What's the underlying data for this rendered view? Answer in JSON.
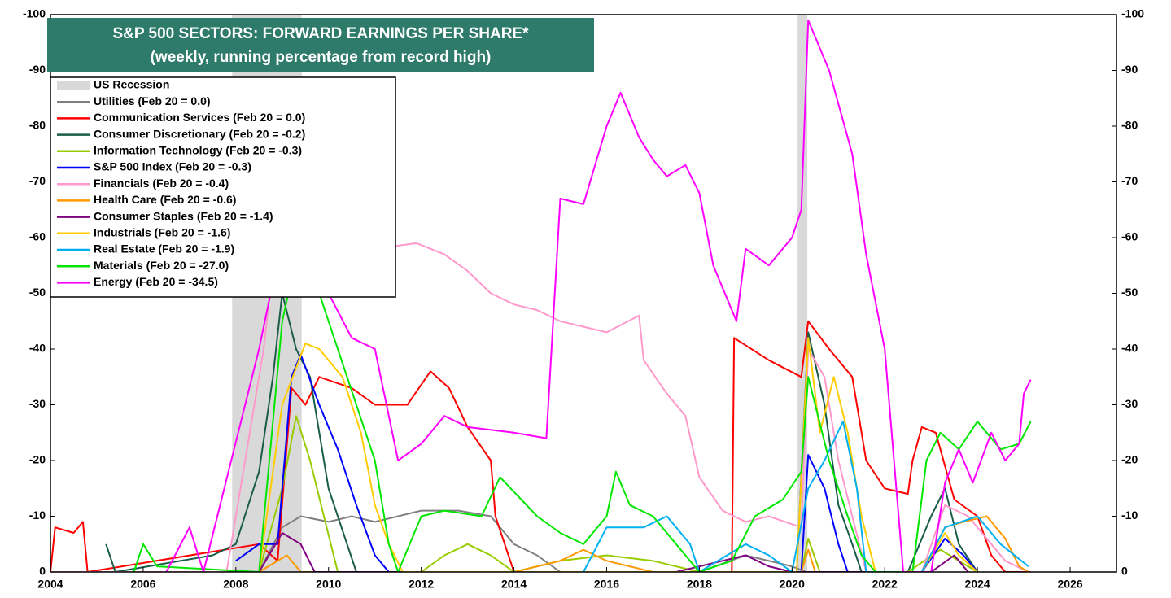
{
  "chart_data": {
    "type": "line",
    "title": "S&P 500 SECTORS: FORWARD EARNINGS PER SHARE*",
    "subtitle": "(weekly, running percentage from record high)",
    "xlim": [
      2004,
      2027
    ],
    "xticks": [
      2004,
      2006,
      2008,
      2010,
      2012,
      2014,
      2016,
      2018,
      2020,
      2022,
      2024,
      2026
    ],
    "ylim": [
      0,
      -100
    ],
    "yticks": [
      0,
      -10,
      -20,
      -30,
      -40,
      -50,
      -60,
      -70,
      -80,
      -90,
      -100
    ],
    "y2lim": [
      0,
      -100
    ],
    "y2ticks": [
      0,
      -10,
      -20,
      -30,
      -40,
      -50,
      -60,
      -70,
      -80,
      -90,
      -100
    ],
    "recession_label": "US Recession",
    "recession_color": "#d9d9d9",
    "recessions": [
      [
        2007.92,
        2009.42
      ],
      [
        2020.12,
        2020.33
      ]
    ],
    "series": [
      {
        "name": "Utilities (Feb 20 = 0.0)",
        "color": "#808080",
        "x": [
          2004,
          2008.5,
          2009,
          2009.4,
          2010,
          2010.5,
          2011,
          2012,
          2012.8,
          2013.5,
          2014,
          2014.5,
          2015,
          2018,
          2019,
          2020,
          2020.3
        ],
        "values": [
          0,
          0,
          -8,
          -10,
          -9,
          -10,
          -9,
          -11,
          -11,
          -10,
          -5,
          -3,
          0,
          0,
          -3,
          -1,
          0
        ]
      },
      {
        "name": "Communication Services (Feb 20 = 0.0)",
        "color": "#ff0000",
        "x": [
          2004,
          2004.1,
          2004.5,
          2004.7,
          2004.8,
          2008.5,
          2008.9,
          2009.2,
          2009.5,
          2009.8,
          2010.5,
          2011,
          2011.7,
          2012.2,
          2012.6,
          2013,
          2013.5,
          2013.6,
          2014,
          2018.7,
          2018.75,
          2019.5,
          2020.2,
          2020.35,
          2020.8,
          2021.3,
          2021.6,
          2022,
          2022.5,
          2022.6,
          2022.8,
          2023.1,
          2023.5,
          2024,
          2024.3,
          2024.6,
          2025.15
        ],
        "values": [
          0,
          -8,
          -7,
          -9,
          0,
          -5,
          -2,
          -33,
          -30,
          -35,
          -33,
          -30,
          -30,
          -36,
          -33,
          -26,
          -20,
          -10,
          0,
          0,
          -42,
          -38,
          -35,
          -45,
          -40,
          -35,
          -20,
          -15,
          -14,
          -20,
          -26,
          -25,
          -13,
          -10,
          -3,
          0,
          0
        ]
      },
      {
        "name": "Consumer Discretionary (Feb 20 = -0.2)",
        "color": "#1a5c4a",
        "x": [
          2005.2,
          2005.4,
          2007.5,
          2008,
          2008.5,
          2008.8,
          2009.0,
          2009.3,
          2009.6,
          2010,
          2010.4,
          2010.6,
          2020.1,
          2020.35,
          2020.7,
          2021.0,
          2021.3,
          2021.5,
          2022.5,
          2023,
          2023.3,
          2023.6,
          2024
        ],
        "values": [
          -5,
          0,
          -3,
          -5,
          -18,
          -35,
          -50,
          -40,
          -35,
          -15,
          -5,
          0,
          0,
          -43,
          -30,
          -12,
          -5,
          0,
          0,
          -10,
          -15,
          -5,
          0
        ]
      },
      {
        "name": "Information Technology (Feb 20 = -0.3)",
        "color": "#99cc00",
        "x": [
          2008.5,
          2009,
          2009.3,
          2009.6,
          2009.9,
          2010.2,
          2012,
          2012.5,
          2013,
          2013.5,
          2014,
          2015,
          2016,
          2017,
          2018,
          2020.2,
          2020.35,
          2020.6,
          2022.5,
          2023.2,
          2023.6,
          2024
        ],
        "values": [
          0,
          -15,
          -28,
          -20,
          -10,
          0,
          0,
          -3,
          -5,
          -3,
          0,
          -2,
          -3,
          -2,
          0,
          0,
          -6,
          0,
          0,
          -4,
          -2,
          0
        ]
      },
      {
        "name": "S&P 500 Index (Feb 20 = -0.3)",
        "color": "#0000ff",
        "x": [
          2008,
          2008.5,
          2008.9,
          2009.2,
          2009.4,
          2009.8,
          2010.2,
          2010.6,
          2011,
          2011.3,
          2020.2,
          2020.35,
          2020.7,
          2021,
          2021.2,
          2022.8,
          2023.3,
          2023.7,
          2024
        ],
        "values": [
          -2,
          -5,
          -5,
          -35,
          -39,
          -30,
          -22,
          -12,
          -3,
          0,
          0,
          -21,
          -15,
          -5,
          0,
          0,
          -6,
          -3,
          0
        ]
      },
      {
        "name": "Financials (Feb 20 = -0.4)",
        "color": "#ff99cc",
        "x": [
          2004,
          2007.8,
          2008.2,
          2008.6,
          2008.8,
          2011,
          2011.9,
          2012.5,
          2013,
          2013.5,
          2014,
          2014.5,
          2015,
          2016,
          2016.7,
          2016.8,
          2017.3,
          2017.7,
          2018,
          2018.5,
          2019,
          2019.5,
          2020.2,
          2020.35,
          2020.7,
          2021,
          2021.3,
          2021.6,
          2022.8,
          2023.3,
          2023.8,
          2024.3,
          2024.6,
          2025.1
        ],
        "values": [
          0,
          0,
          -20,
          -40,
          -55,
          -58,
          -59,
          -57,
          -54,
          -50,
          -48,
          -47,
          -45,
          -43,
          -46,
          -38,
          -32,
          -28,
          -17,
          -11,
          -9,
          -10,
          -8,
          -40,
          -35,
          -20,
          -10,
          0,
          0,
          -12,
          -10,
          -5,
          -2,
          0
        ]
      },
      {
        "name": "Health Care (Feb 20 = -0.6)",
        "color": "#ff9900",
        "x": [
          2008.5,
          2009.1,
          2009.4,
          2014,
          2015,
          2015.5,
          2016,
          2017,
          2020.2,
          2020.35,
          2020.5,
          2022.8,
          2023.3,
          2023.7,
          2024.2,
          2024.6,
          2024.9,
          2025.1
        ],
        "values": [
          0,
          -3,
          0,
          0,
          -2,
          -4,
          -2,
          0,
          0,
          -4,
          0,
          0,
          -8,
          -9,
          -10,
          -6,
          -1,
          0
        ]
      },
      {
        "name": "Consumer Staples (Feb 20 = -1.4)",
        "color": "#800080",
        "x": [
          2008.5,
          2009,
          2009.4,
          2009.7,
          2017.5,
          2018.5,
          2019,
          2019.5,
          2020,
          2023,
          2023.5,
          2023.8
        ],
        "values": [
          0,
          -7,
          -5,
          0,
          0,
          -2,
          -3,
          -1,
          0,
          0,
          -3,
          0
        ]
      },
      {
        "name": "Industrials (Feb 20 = -1.6)",
        "color": "#ffcc00",
        "x": [
          2008.5,
          2009.0,
          2009.5,
          2009.8,
          2010.3,
          2010.7,
          2011.0,
          2011.3,
          2011.6,
          2020.1,
          2020.35,
          2020.6,
          2020.9,
          2021.2,
          2021.5,
          2021.8,
          2022.8,
          2023.3,
          2023.6,
          2024
        ],
        "values": [
          0,
          -30,
          -41,
          -40,
          -35,
          -25,
          -12,
          -5,
          0,
          0,
          -42,
          -25,
          -35,
          -25,
          -10,
          0,
          0,
          -7,
          -3,
          0
        ]
      },
      {
        "name": "Real Estate (Feb 20 = -1.9)",
        "color": "#00b0f0",
        "x": [
          2015.5,
          2016,
          2016.8,
          2017.3,
          2017.8,
          2018,
          2019,
          2019.5,
          2020,
          2020.35,
          2020.7,
          2021.1,
          2021.4,
          2021.6,
          2022.8,
          2023.3,
          2024,
          2024.5,
          2025.1
        ],
        "values": [
          0,
          -8,
          -8,
          -10,
          -5,
          0,
          -5,
          -3,
          0,
          -15,
          -20,
          -27,
          -15,
          0,
          0,
          -8,
          -10,
          -5,
          -1
        ]
      },
      {
        "name": "Materials (Feb 20 = -27.0)",
        "color": "#00e600",
        "x": [
          2005.8,
          2006,
          2006.3,
          2008.5,
          2009,
          2009.4,
          2009.8,
          2010.2,
          2010.6,
          2011,
          2011.3,
          2011.5,
          2012,
          2012.5,
          2013.3,
          2013.7,
          2014.5,
          2015,
          2015.5,
          2016,
          2016.2,
          2016.5,
          2017,
          2017.5,
          2018,
          2018.7,
          2019.2,
          2019.8,
          2020.2,
          2020.35,
          2020.8,
          2021.2,
          2021.5,
          2021.8,
          2022.6,
          2022.9,
          2023.2,
          2023.6,
          2024,
          2024.5,
          2024.9,
          2025.15
        ],
        "values": [
          0,
          -5,
          -1,
          0,
          -45,
          -60,
          -50,
          -40,
          -30,
          -20,
          -5,
          0,
          -10,
          -11,
          -10,
          -17,
          -10,
          -7,
          -5,
          -10,
          -18,
          -12,
          -10,
          -5,
          0,
          -2,
          -10,
          -13,
          -18,
          -35,
          -20,
          -10,
          -3,
          0,
          0,
          -20,
          -25,
          -22,
          -27,
          -22,
          -23,
          -27
        ]
      },
      {
        "name": "Energy (Feb 20 = -34.5)",
        "color": "#ff00ff",
        "x": [
          2006.5,
          2007,
          2007.3,
          2008.5,
          2009,
          2009.5,
          2010,
          2010.5,
          2011,
          2011.5,
          2012,
          2012.5,
          2013,
          2014,
          2014.7,
          2015,
          2015.5,
          2016,
          2016.3,
          2016.7,
          2017,
          2017.3,
          2017.7,
          2018,
          2018.3,
          2018.8,
          2019,
          2019.5,
          2020,
          2020.2,
          2020.35,
          2020.8,
          2021.3,
          2021.6,
          2022,
          2022.3,
          2022.4,
          2023,
          2023.3,
          2023.6,
          2023.9,
          2024.3,
          2024.6,
          2024.9,
          2025,
          2025.15
        ],
        "values": [
          0,
          -8,
          0,
          -40,
          -60,
          -55,
          -50,
          -42,
          -40,
          -20,
          -23,
          -28,
          -26,
          -25,
          -24,
          -67,
          -66,
          -80,
          -86,
          -78,
          -74,
          -71,
          -73,
          -68,
          -55,
          -45,
          -58,
          -55,
          -60,
          -65,
          -99,
          -90,
          -75,
          -57,
          -40,
          -10,
          0,
          0,
          -16,
          -22,
          -16,
          -25,
          -20,
          -23,
          -32,
          -34.5
        ]
      }
    ]
  }
}
